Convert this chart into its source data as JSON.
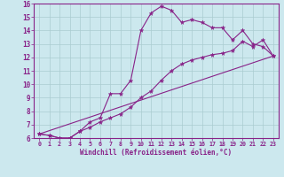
{
  "xlabel": "Windchill (Refroidissement éolien,°C)",
  "bg_color": "#cce8ee",
  "line_color": "#882288",
  "grid_color": "#aaccd0",
  "xlim": [
    -0.5,
    23.5
  ],
  "ylim": [
    6,
    16
  ],
  "xticks": [
    0,
    1,
    2,
    3,
    4,
    5,
    6,
    7,
    8,
    9,
    10,
    11,
    12,
    13,
    14,
    15,
    16,
    17,
    18,
    19,
    20,
    21,
    22,
    23
  ],
  "yticks": [
    6,
    7,
    8,
    9,
    10,
    11,
    12,
    13,
    14,
    15,
    16
  ],
  "series1_x": [
    0,
    1,
    2,
    3,
    4,
    5,
    6,
    7,
    8,
    9,
    10,
    11,
    12,
    13,
    14,
    15,
    16,
    17,
    18,
    19,
    20,
    21,
    22,
    23
  ],
  "series1_y": [
    6.3,
    6.2,
    6.0,
    6.0,
    6.5,
    7.2,
    7.5,
    9.3,
    9.3,
    10.3,
    14.0,
    15.3,
    15.8,
    15.5,
    14.6,
    14.8,
    14.6,
    14.2,
    14.2,
    13.3,
    14.0,
    13.0,
    12.8,
    12.1
  ],
  "series2_x": [
    0,
    1,
    2,
    3,
    4,
    5,
    6,
    7,
    8,
    9,
    10,
    11,
    12,
    13,
    14,
    15,
    16,
    17,
    18,
    19,
    20,
    21,
    22,
    23
  ],
  "series2_y": [
    6.3,
    6.2,
    6.0,
    6.0,
    6.5,
    6.8,
    7.2,
    7.5,
    7.8,
    8.3,
    9.0,
    9.5,
    10.3,
    11.0,
    11.5,
    11.8,
    12.0,
    12.2,
    12.3,
    12.5,
    13.2,
    12.8,
    13.3,
    12.1
  ],
  "series3_x": [
    0,
    23
  ],
  "series3_y": [
    6.3,
    12.1
  ]
}
